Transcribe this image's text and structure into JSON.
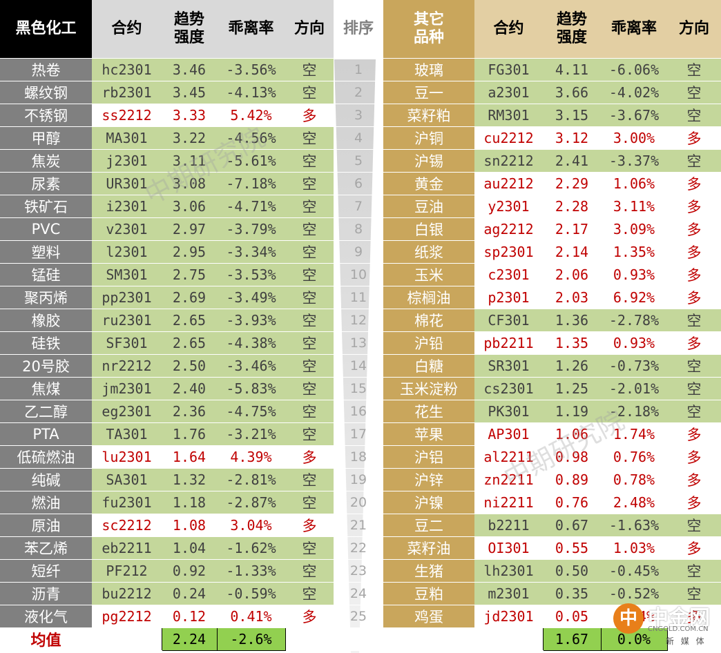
{
  "header": {
    "left_title": "黑色化工",
    "contract": "合约",
    "trend_line1": "趋势",
    "trend_line2": "强度",
    "deviation": "乖离率",
    "direction": "方向",
    "rank": "排序",
    "right_title_line1": "其它",
    "right_title_line2": "品种"
  },
  "left_rows": [
    {
      "name": "热卷",
      "contract": "hc2301",
      "trend": "3.46",
      "dev": "-3.56%",
      "dir": "空",
      "style": "green"
    },
    {
      "name": "螺纹钢",
      "contract": "rb2301",
      "trend": "3.45",
      "dev": "-4.13%",
      "dir": "空",
      "style": "green"
    },
    {
      "name": "不锈钢",
      "contract": "ss2212",
      "trend": "3.33",
      "dev": "5.42%",
      "dir": "多",
      "style": "white"
    },
    {
      "name": "甲醇",
      "contract": "MA301",
      "trend": "3.22",
      "dev": "-4.56%",
      "dir": "空",
      "style": "green"
    },
    {
      "name": "焦炭",
      "contract": "j2301",
      "trend": "3.11",
      "dev": "-5.61%",
      "dir": "空",
      "style": "green"
    },
    {
      "name": "尿素",
      "contract": "UR301",
      "trend": "3.08",
      "dev": "-7.18%",
      "dir": "空",
      "style": "green"
    },
    {
      "name": "铁矿石",
      "contract": "i2301",
      "trend": "3.06",
      "dev": "-4.71%",
      "dir": "空",
      "style": "green"
    },
    {
      "name": "PVC",
      "contract": "v2301",
      "trend": "2.97",
      "dev": "-3.79%",
      "dir": "空",
      "style": "green"
    },
    {
      "name": "塑料",
      "contract": "l2301",
      "trend": "2.95",
      "dev": "-3.34%",
      "dir": "空",
      "style": "green"
    },
    {
      "name": "锰硅",
      "contract": "SM301",
      "trend": "2.75",
      "dev": "-3.53%",
      "dir": "空",
      "style": "green"
    },
    {
      "name": "聚丙烯",
      "contract": "pp2301",
      "trend": "2.69",
      "dev": "-3.49%",
      "dir": "空",
      "style": "green"
    },
    {
      "name": "橡胶",
      "contract": "ru2301",
      "trend": "2.65",
      "dev": "-3.93%",
      "dir": "空",
      "style": "green"
    },
    {
      "name": "硅铁",
      "contract": "SF301",
      "trend": "2.65",
      "dev": "-4.38%",
      "dir": "空",
      "style": "green"
    },
    {
      "name": "20号胶",
      "contract": "nr2212",
      "trend": "2.50",
      "dev": "-3.46%",
      "dir": "空",
      "style": "green"
    },
    {
      "name": "焦煤",
      "contract": "jm2301",
      "trend": "2.40",
      "dev": "-5.83%",
      "dir": "空",
      "style": "green"
    },
    {
      "name": "乙二醇",
      "contract": "eg2301",
      "trend": "2.36",
      "dev": "-4.75%",
      "dir": "空",
      "style": "green"
    },
    {
      "name": "PTA",
      "contract": "TA301",
      "trend": "1.76",
      "dev": "-3.21%",
      "dir": "空",
      "style": "green"
    },
    {
      "name": "低硫燃油",
      "contract": "lu2301",
      "trend": "1.64",
      "dev": "4.39%",
      "dir": "多",
      "style": "white"
    },
    {
      "name": "纯碱",
      "contract": "SA301",
      "trend": "1.32",
      "dev": "-2.81%",
      "dir": "空",
      "style": "green"
    },
    {
      "name": "燃油",
      "contract": "fu2301",
      "trend": "1.18",
      "dev": "-2.87%",
      "dir": "空",
      "style": "green"
    },
    {
      "name": "原油",
      "contract": "sc2212",
      "trend": "1.08",
      "dev": "3.04%",
      "dir": "多",
      "style": "white"
    },
    {
      "name": "苯乙烯",
      "contract": "eb2211",
      "trend": "1.04",
      "dev": "-1.62%",
      "dir": "空",
      "style": "green"
    },
    {
      "name": "短纤",
      "contract": "PF212",
      "trend": "0.92",
      "dev": "-1.33%",
      "dir": "空",
      "style": "green"
    },
    {
      "name": "沥青",
      "contract": "bu2212",
      "trend": "0.24",
      "dev": "-0.59%",
      "dir": "空",
      "style": "green"
    },
    {
      "name": "液化气",
      "contract": "pg2212",
      "trend": "0.12",
      "dev": "0.41%",
      "dir": "多",
      "style": "white"
    }
  ],
  "ranks": [
    "1",
    "2",
    "3",
    "4",
    "5",
    "6",
    "7",
    "8",
    "9",
    "10",
    "11",
    "12",
    "13",
    "14",
    "15",
    "16",
    "17",
    "18",
    "19",
    "20",
    "21",
    "22",
    "23",
    "24",
    "25"
  ],
  "right_rows": [
    {
      "name": "玻璃",
      "contract": "FG301",
      "trend": "4.11",
      "dev": "-6.06%",
      "dir": "空",
      "style": "green"
    },
    {
      "name": "豆一",
      "contract": "a2301",
      "trend": "3.66",
      "dev": "-4.02%",
      "dir": "空",
      "style": "green"
    },
    {
      "name": "菜籽粕",
      "contract": "RM301",
      "trend": "3.15",
      "dev": "-3.67%",
      "dir": "空",
      "style": "green"
    },
    {
      "name": "沪铜",
      "contract": "cu2212",
      "trend": "3.12",
      "dev": "3.00%",
      "dir": "多",
      "style": "white"
    },
    {
      "name": "沪锡",
      "contract": "sn2212",
      "trend": "2.41",
      "dev": "-3.37%",
      "dir": "空",
      "style": "green"
    },
    {
      "name": "黄金",
      "contract": "au2212",
      "trend": "2.29",
      "dev": "1.06%",
      "dir": "多",
      "style": "white"
    },
    {
      "name": "豆油",
      "contract": "y2301",
      "trend": "2.28",
      "dev": "3.11%",
      "dir": "多",
      "style": "white"
    },
    {
      "name": "白银",
      "contract": "ag2212",
      "trend": "2.17",
      "dev": "3.09%",
      "dir": "多",
      "style": "white"
    },
    {
      "name": "纸浆",
      "contract": "sp2301",
      "trend": "2.14",
      "dev": "1.35%",
      "dir": "多",
      "style": "white"
    },
    {
      "name": "玉米",
      "contract": "c2301",
      "trend": "2.06",
      "dev": "0.93%",
      "dir": "多",
      "style": "white"
    },
    {
      "name": "棕榈油",
      "contract": "p2301",
      "trend": "2.03",
      "dev": "6.92%",
      "dir": "多",
      "style": "white"
    },
    {
      "name": "棉花",
      "contract": "CF301",
      "trend": "1.36",
      "dev": "-2.78%",
      "dir": "空",
      "style": "green"
    },
    {
      "name": "沪铅",
      "contract": "pb2211",
      "trend": "1.35",
      "dev": "0.93%",
      "dir": "多",
      "style": "white"
    },
    {
      "name": "白糖",
      "contract": "SR301",
      "trend": "1.26",
      "dev": "-0.73%",
      "dir": "空",
      "style": "green"
    },
    {
      "name": "玉米淀粉",
      "contract": "cs2301",
      "trend": "1.25",
      "dev": "-2.01%",
      "dir": "空",
      "style": "green"
    },
    {
      "name": "花生",
      "contract": "PK301",
      "trend": "1.19",
      "dev": "-2.18%",
      "dir": "空",
      "style": "green"
    },
    {
      "name": "苹果",
      "contract": "AP301",
      "trend": "1.06",
      "dev": "1.74%",
      "dir": "多",
      "style": "white"
    },
    {
      "name": "沪铝",
      "contract": "al2211",
      "trend": "0.98",
      "dev": "0.76%",
      "dir": "多",
      "style": "white"
    },
    {
      "name": "沪锌",
      "contract": "zn2211",
      "trend": "0.89",
      "dev": "0.78%",
      "dir": "多",
      "style": "white"
    },
    {
      "name": "沪镍",
      "contract": "ni2211",
      "trend": "0.76",
      "dev": "2.48%",
      "dir": "多",
      "style": "white"
    },
    {
      "name": "豆二",
      "contract": "b2211",
      "trend": "0.67",
      "dev": "-1.63%",
      "dir": "空",
      "style": "green"
    },
    {
      "name": "菜籽油",
      "contract": "OI301",
      "trend": "0.55",
      "dev": "1.03%",
      "dir": "多",
      "style": "white"
    },
    {
      "name": "生猪",
      "contract": "lh2301",
      "trend": "0.50",
      "dev": "-0.45%",
      "dir": "空",
      "style": "green"
    },
    {
      "name": "豆粕",
      "contract": "m2301",
      "trend": "0.35",
      "dev": "-0.52%",
      "dir": "空",
      "style": "green"
    },
    {
      "name": "鸡蛋",
      "contract": "jd2301",
      "trend": "0.05",
      "dev": "0.24%",
      "dir": "多",
      "style": "white"
    }
  ],
  "footer": {
    "label": "均值",
    "left_trend": "2.24",
    "left_dev": "-2.6%",
    "right_trend": "1.67",
    "right_dev": "0.0%"
  },
  "watermark": "中期研究院",
  "logo": {
    "mark": "中",
    "name": "中金网",
    "domain": "CNGOLD.COM.CN",
    "media": "新 媒 体"
  },
  "colors": {
    "green_row": "#c4d79b",
    "long_red": "#c00000",
    "left_header": "#000000",
    "right_header": "#c9a65c",
    "average_box": "#92d050"
  }
}
